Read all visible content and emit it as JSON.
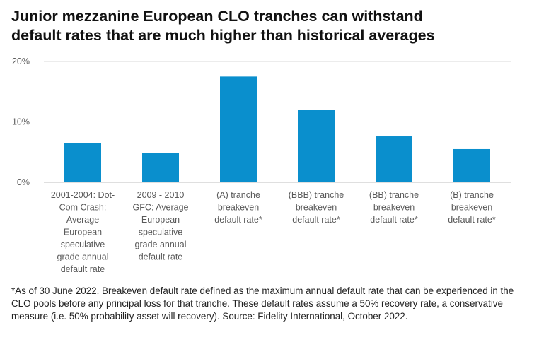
{
  "title_line1": "Junior mezzanine European CLO tranches can withstand",
  "title_line2": "default rates that are much higher than historical averages",
  "footnote": "*As of 30 June 2022. Breakeven default rate defined as the maximum annual default rate that can be experienced in the CLO pools before any principal loss for that tranche. These default rates assume a 50% recovery rate, a conservative measure (i.e. 50% probability asset will recovery). Source: Fidelity International, October 2022.",
  "colors": {
    "bar": "#0a8fcd",
    "grid": "#d9d9d9",
    "axis": "#bfbfbf",
    "text": "#595959"
  },
  "chart_data": {
    "type": "bar",
    "categories": [
      [
        "2001-2004: Dot-",
        "Com Crash:",
        "Average",
        "European",
        "speculative",
        "grade annual",
        "default rate"
      ],
      [
        "2009 - 2010",
        "GFC: Average",
        "European",
        "speculative",
        "grade annual",
        "default rate"
      ],
      [
        "(A) tranche",
        "breakeven",
        "default rate*"
      ],
      [
        "(BBB) tranche",
        "breakeven",
        "default rate*"
      ],
      [
        "(BB) tranche",
        "breakeven",
        "default rate*"
      ],
      [
        "(B) tranche",
        "breakeven",
        "default rate*"
      ]
    ],
    "values": [
      6.5,
      4.8,
      17.5,
      12.0,
      7.6,
      5.5
    ],
    "ylim": [
      0,
      20
    ],
    "yticks": [
      0,
      10,
      20
    ],
    "ytick_labels": [
      "0%",
      "10%",
      "20%"
    ],
    "grid": true
  }
}
